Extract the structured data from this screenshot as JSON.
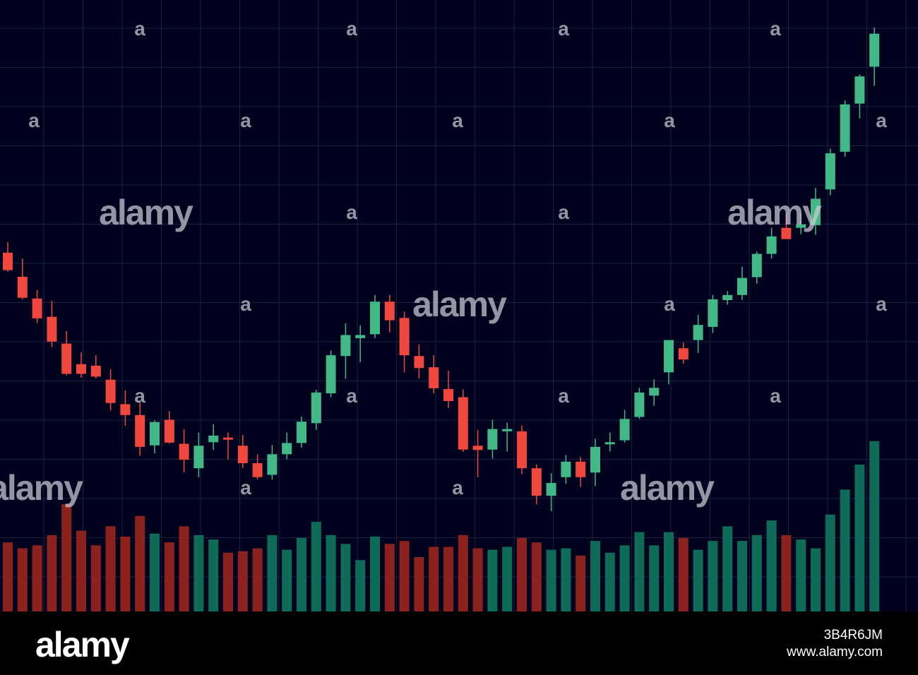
{
  "colors": {
    "background": "#00021e",
    "grid": "#1b2040",
    "up": "#41b886",
    "down": "#f0483e",
    "volume_up": "#0e6b58",
    "volume_down": "#8b221d",
    "footer": "#000000"
  },
  "chart_data": {
    "type": "candlestick",
    "title": "",
    "xlabel": "",
    "ylabel": "",
    "grid": true,
    "candles": [
      {
        "o": 62.2,
        "h": 64.9,
        "l": 57.3,
        "c": 57.7
      },
      {
        "o": 56.0,
        "h": 60.7,
        "l": 50.2,
        "c": 50.6
      },
      {
        "o": 50.4,
        "h": 52.6,
        "l": 44.1,
        "c": 45.3
      },
      {
        "o": 45.7,
        "h": 49.8,
        "l": 37.9,
        "c": 39.3
      },
      {
        "o": 38.8,
        "h": 42.0,
        "l": 30.6,
        "c": 31.0
      },
      {
        "o": 33.5,
        "h": 36.6,
        "l": 30.0,
        "c": 31.0
      },
      {
        "o": 33.1,
        "h": 35.8,
        "l": 29.8,
        "c": 30.3
      },
      {
        "o": 29.5,
        "h": 32.2,
        "l": 21.6,
        "c": 23.5
      },
      {
        "o": 23.2,
        "h": 26.7,
        "l": 17.6,
        "c": 20.4
      },
      {
        "o": 20.4,
        "h": 24.0,
        "l": 9.9,
        "c": 12.2
      },
      {
        "o": 12.6,
        "h": 19.0,
        "l": 10.5,
        "c": 18.6
      },
      {
        "o": 19.2,
        "h": 21.4,
        "l": 13.1,
        "c": 13.3
      },
      {
        "o": 13.0,
        "h": 16.8,
        "l": 5.6,
        "c": 8.9
      },
      {
        "o": 6.7,
        "h": 15.9,
        "l": 4.4,
        "c": 12.5
      },
      {
        "o": 13.4,
        "h": 18.0,
        "l": 11.4,
        "c": 15.1
      },
      {
        "o": 14.6,
        "h": 15.9,
        "l": 9.0,
        "c": 14.2
      },
      {
        "o": 12.5,
        "h": 15.3,
        "l": 6.8,
        "c": 8.0
      },
      {
        "o": 8.0,
        "h": 10.3,
        "l": 3.8,
        "c": 4.4
      },
      {
        "o": 5.0,
        "h": 12.7,
        "l": 3.8,
        "c": 10.3
      },
      {
        "o": 10.3,
        "h": 15.9,
        "l": 9.0,
        "c": 13.2
      },
      {
        "o": 13.2,
        "h": 20.0,
        "l": 12.0,
        "c": 18.7
      },
      {
        "o": 18.3,
        "h": 26.9,
        "l": 16.6,
        "c": 26.2
      },
      {
        "o": 26.0,
        "h": 37.0,
        "l": 25.0,
        "c": 35.8
      },
      {
        "o": 35.6,
        "h": 44.0,
        "l": 29.7,
        "c": 41.0
      },
      {
        "o": 40.2,
        "h": 43.5,
        "l": 34.0,
        "c": 41.0
      },
      {
        "o": 41.2,
        "h": 51.3,
        "l": 40.2,
        "c": 49.6
      },
      {
        "o": 49.6,
        "h": 51.3,
        "l": 41.7,
        "c": 44.8
      },
      {
        "o": 45.4,
        "h": 47.0,
        "l": 31.4,
        "c": 35.8
      },
      {
        "o": 35.6,
        "h": 38.6,
        "l": 29.8,
        "c": 32.5
      },
      {
        "o": 32.7,
        "h": 35.8,
        "l": 26.0,
        "c": 27.3
      },
      {
        "o": 27.1,
        "h": 31.8,
        "l": 22.2,
        "c": 24.0
      },
      {
        "o": 25.0,
        "h": 27.0,
        "l": 10.9,
        "c": 11.5
      },
      {
        "o": 12.5,
        "h": 16.5,
        "l": 4.4,
        "c": 11.4
      },
      {
        "o": 11.5,
        "h": 19.2,
        "l": 9.2,
        "c": 16.8
      },
      {
        "o": 16.2,
        "h": 18.4,
        "l": 11.0,
        "c": 16.8
      },
      {
        "o": 16.2,
        "h": 17.7,
        "l": 5.2,
        "c": 6.7
      },
      {
        "o": 6.7,
        "h": 7.7,
        "l": -2.6,
        "c": -0.4
      },
      {
        "o": -0.4,
        "h": 5.4,
        "l": -4.4,
        "c": 2.9
      },
      {
        "o": 4.4,
        "h": 10.1,
        "l": 2.7,
        "c": 8.4
      },
      {
        "o": 8.4,
        "h": 9.6,
        "l": 1.9,
        "c": 4.4
      },
      {
        "o": 5.6,
        "h": 14.3,
        "l": 2.1,
        "c": 12.2
      },
      {
        "o": 13.0,
        "h": 15.9,
        "l": 11.0,
        "c": 13.4
      },
      {
        "o": 13.9,
        "h": 21.7,
        "l": 13.3,
        "c": 19.4
      },
      {
        "o": 19.9,
        "h": 27.4,
        "l": 19.4,
        "c": 26.2
      },
      {
        "o": 25.4,
        "h": 29.6,
        "l": 22.8,
        "c": 27.4
      },
      {
        "o": 31.4,
        "h": 39.1,
        "l": 28.3,
        "c": 39.7
      },
      {
        "o": 37.6,
        "h": 39.1,
        "l": 33.6,
        "c": 34.7
      },
      {
        "o": 39.7,
        "h": 46.2,
        "l": 36.4,
        "c": 43.6
      },
      {
        "o": 43.1,
        "h": 51.3,
        "l": 41.5,
        "c": 50.2
      },
      {
        "o": 50.0,
        "h": 52.3,
        "l": 48.8,
        "c": 51.3
      },
      {
        "o": 51.3,
        "h": 58.6,
        "l": 50.0,
        "c": 55.7
      },
      {
        "o": 55.9,
        "h": 62.5,
        "l": 54.2,
        "c": 61.9
      },
      {
        "o": 61.9,
        "h": 68.6,
        "l": 60.7,
        "c": 66.4
      },
      {
        "o": 68.6,
        "h": 72.4,
        "l": 65.9,
        "c": 65.7
      },
      {
        "o": 68.6,
        "h": 72.4,
        "l": 67.0,
        "c": 69.5
      },
      {
        "o": 69.3,
        "h": 78.9,
        "l": 66.8,
        "c": 76.1
      },
      {
        "o": 78.5,
        "h": 89.0,
        "l": 77.0,
        "c": 87.8
      },
      {
        "o": 88.2,
        "h": 101.4,
        "l": 86.9,
        "c": 100.4
      },
      {
        "o": 100.6,
        "h": 108.1,
        "l": 96.8,
        "c": 107.6
      },
      {
        "o": 110.1,
        "h": 120.2,
        "l": 105.2,
        "c": 118.6
      }
    ],
    "volume": [
      47,
      43,
      45,
      52,
      73,
      55,
      45,
      58,
      51,
      65,
      53,
      47,
      58,
      52,
      49,
      40,
      41,
      43,
      52,
      42,
      50,
      61,
      52,
      46,
      35,
      51,
      46,
      48,
      37,
      44,
      44,
      52,
      43,
      42,
      44,
      50,
      47,
      42,
      43,
      38,
      48,
      40,
      45,
      54,
      45,
      54,
      50,
      42,
      48,
      58,
      48,
      52,
      62,
      52,
      49,
      43,
      66,
      83,
      100,
      116
    ]
  }
}
